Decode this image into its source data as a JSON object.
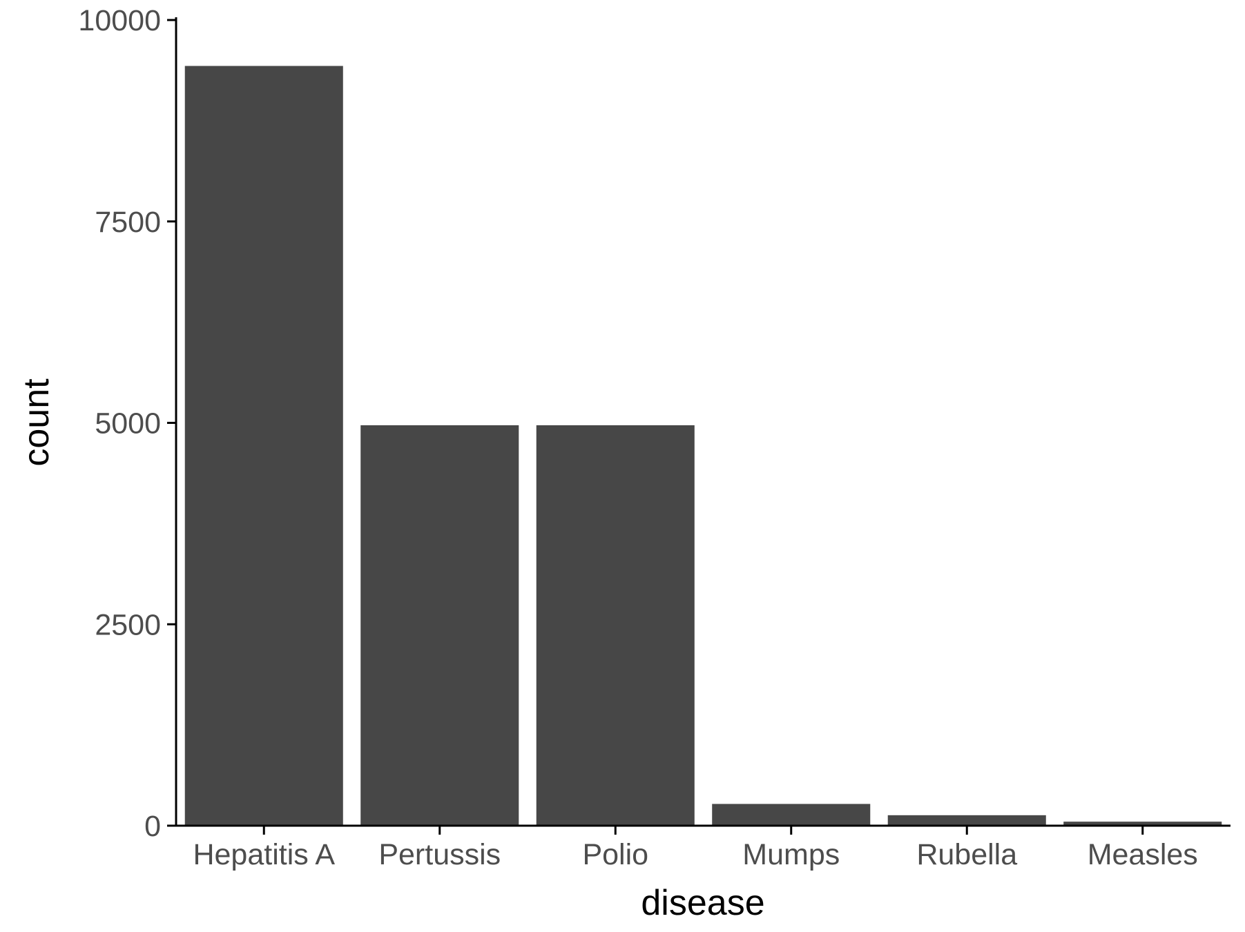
{
  "chart_data": {
    "type": "bar",
    "title": "",
    "xlabel": "disease",
    "ylabel": "count",
    "categories": [
      "Hepatitis A",
      "Pertussis",
      "Polio",
      "Mumps",
      "Rubella",
      "Measles"
    ],
    "values": [
      9430,
      4970,
      4970,
      270,
      130,
      50
    ],
    "ylim": [
      0,
      10000
    ],
    "yticks": [
      0,
      2500,
      5000,
      7500,
      10000
    ],
    "ytick_labels": [
      "0",
      "2500",
      "5000",
      "7500",
      "10000"
    ],
    "grid": false,
    "legend": "none",
    "colors": {
      "bar": "#474747",
      "axis": "#000000",
      "tick_text": "#4d4d4d",
      "title_text": "#000000",
      "background": "#ffffff"
    }
  }
}
